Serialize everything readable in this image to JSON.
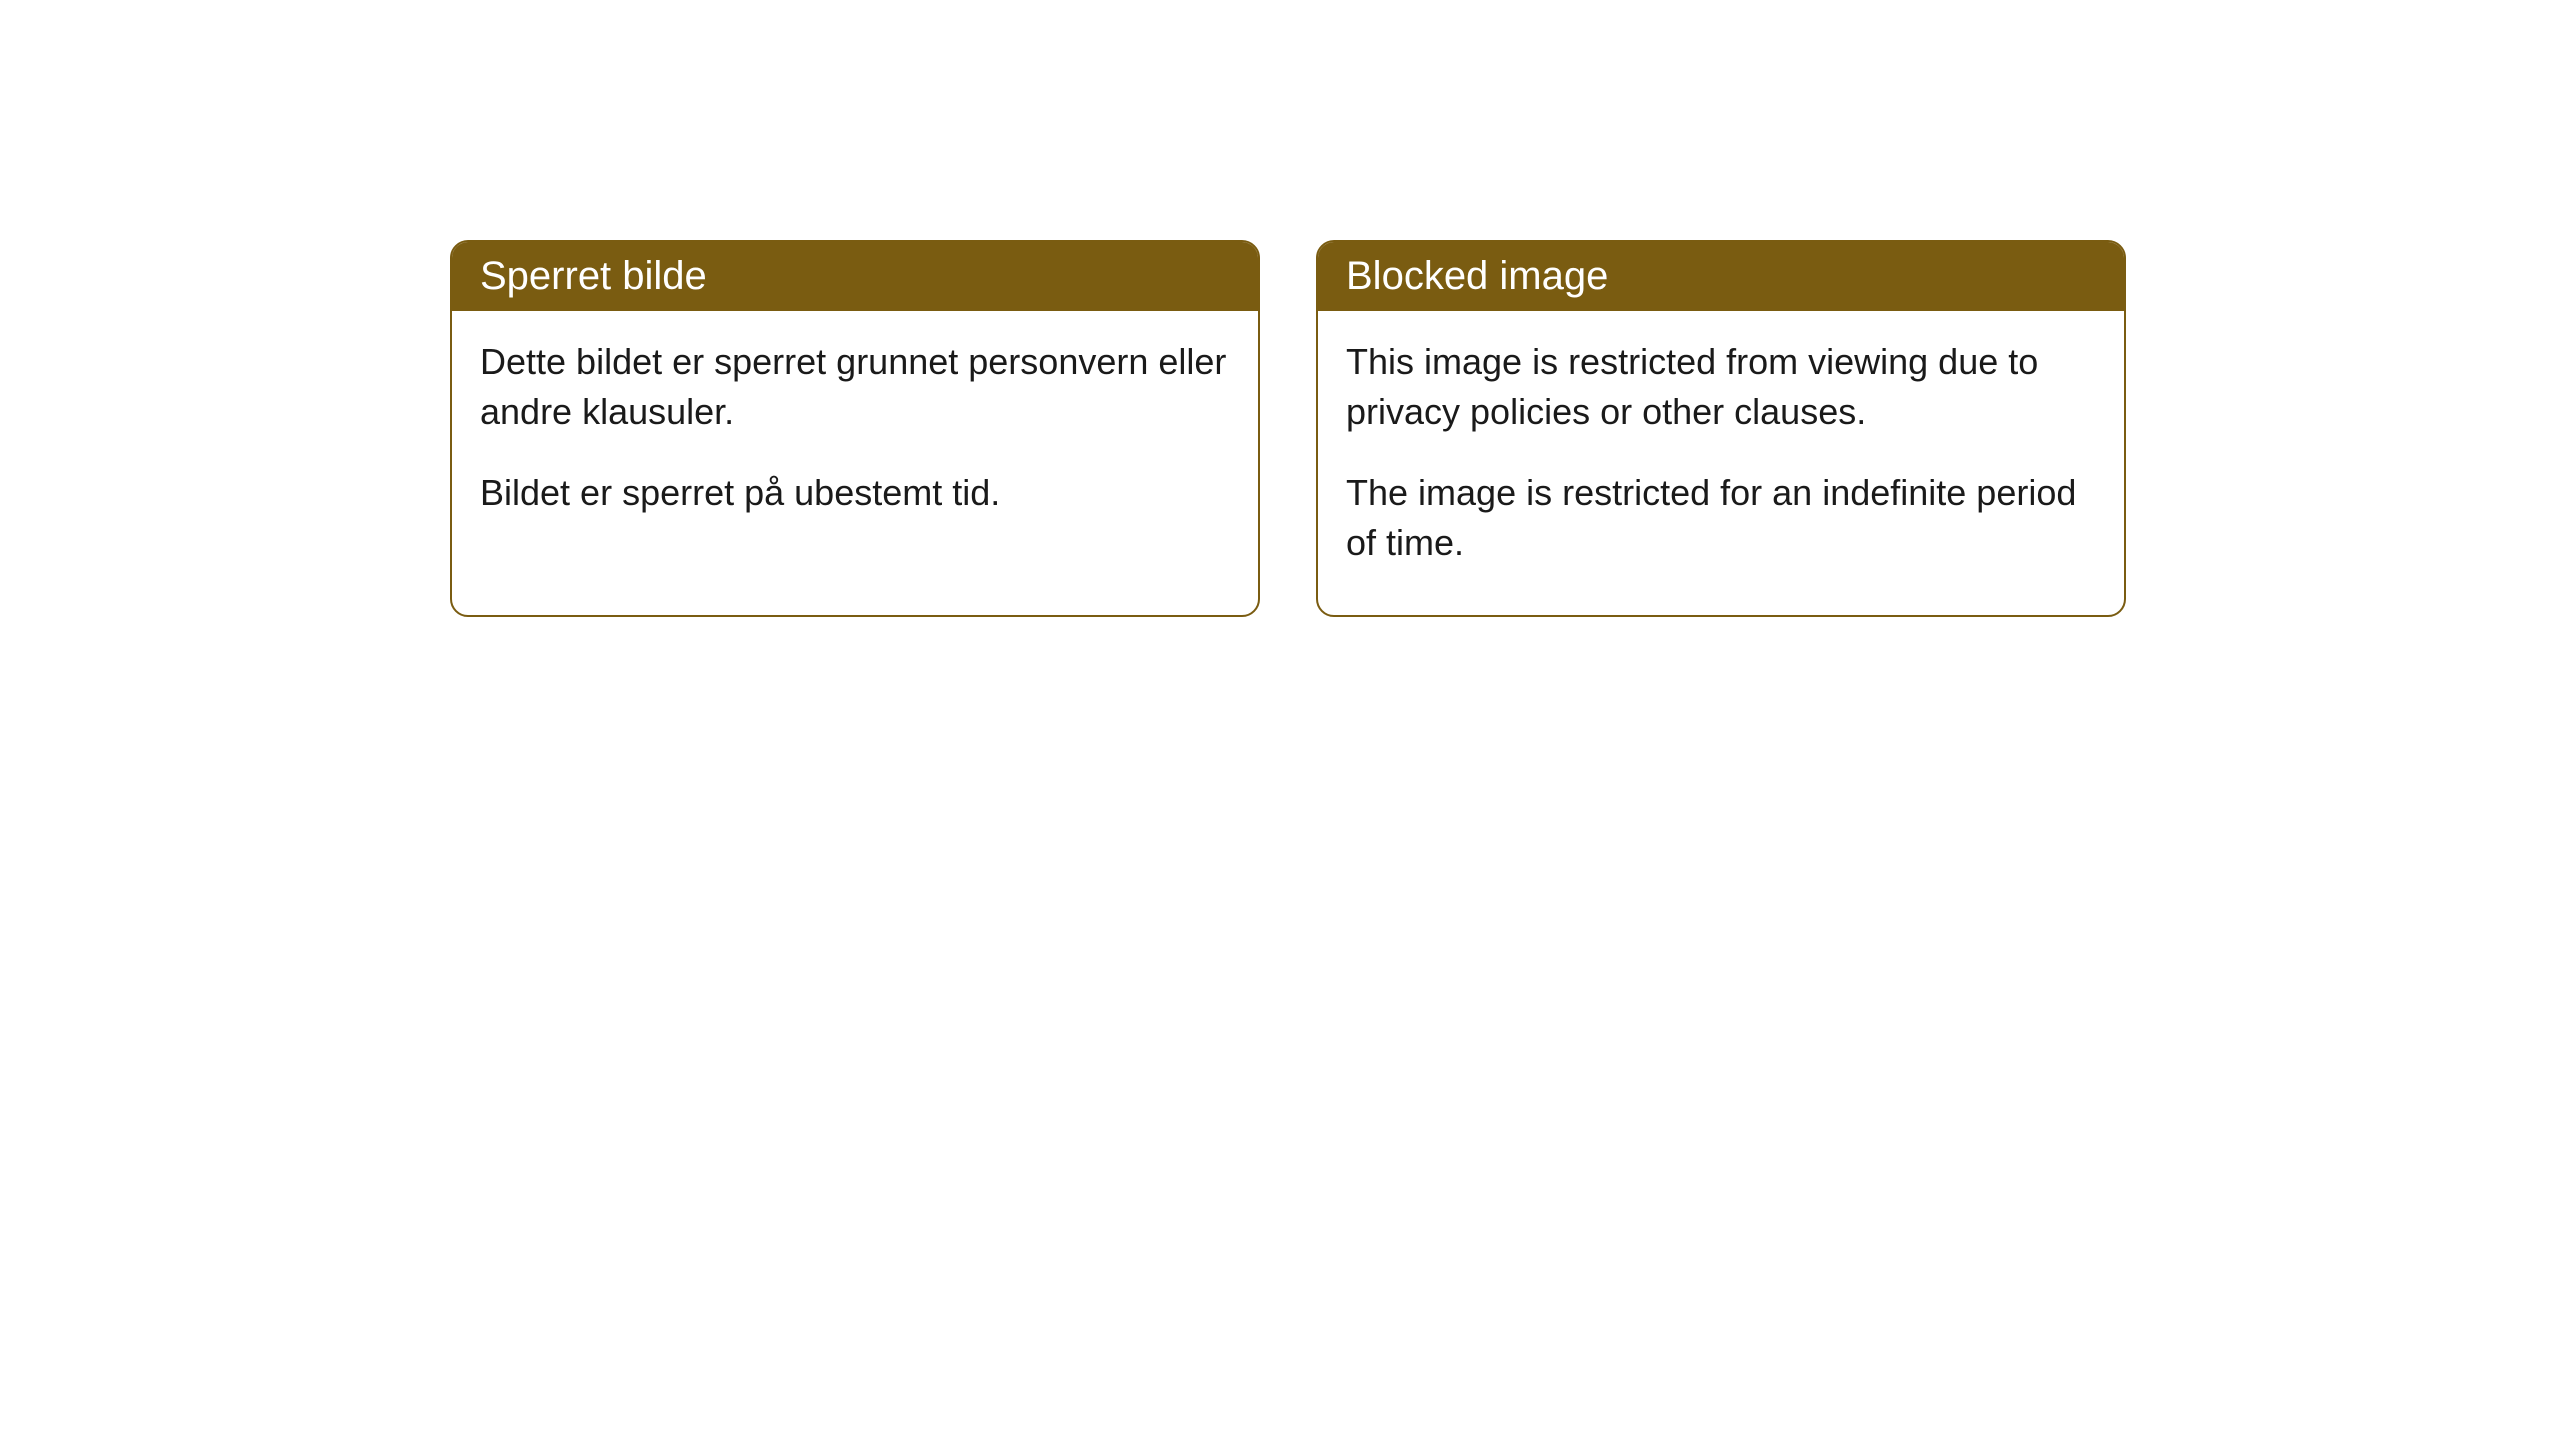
{
  "cards": [
    {
      "title": "Sperret bilde",
      "paragraph1": "Dette bildet er sperret grunnet personvern eller andre klausuler.",
      "paragraph2": "Bildet er sperret på ubestemt tid."
    },
    {
      "title": "Blocked image",
      "paragraph1": "This image is restricted from viewing due to privacy policies or other clauses.",
      "paragraph2": "The image is restricted for an indefinite period of time."
    }
  ],
  "style": {
    "header_bg": "#7a5c11",
    "header_text_color": "#ffffff",
    "border_color": "#7a5c11",
    "body_bg": "#ffffff",
    "body_text_color": "#1a1a1a",
    "border_radius": 18,
    "title_fontsize": 40,
    "body_fontsize": 36
  }
}
